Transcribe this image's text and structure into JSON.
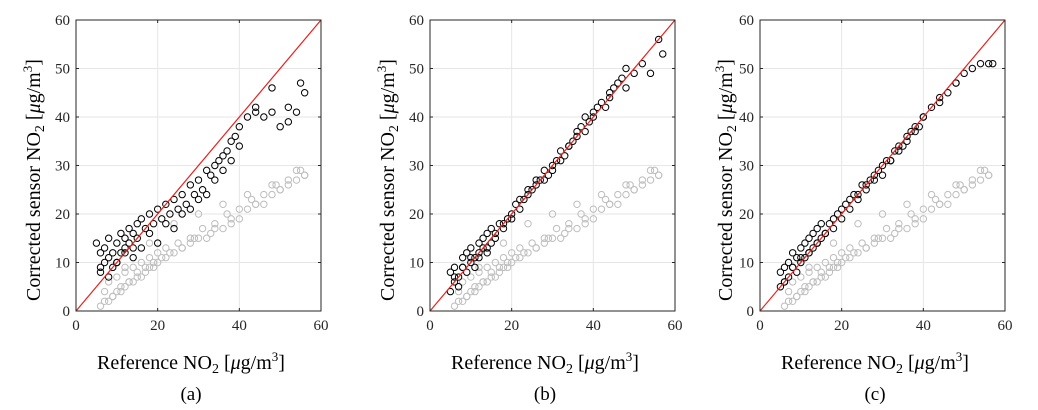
{
  "chart_data": [
    {
      "type": "scatter",
      "caption": "(a)",
      "xlabel": {
        "pre": "Reference NO",
        "sub": "2",
        "mid": " [",
        "mu": "μ",
        "unit": "g/m",
        "sup": "3",
        "post": "]"
      },
      "ylabel": {
        "pre": "Corrected sensor NO",
        "sub": "2",
        "mid": " [",
        "mu": "μ",
        "unit": "g/m",
        "sup": "3",
        "post": "]"
      },
      "xlim": [
        0,
        60
      ],
      "ylim": [
        0,
        60
      ],
      "xticks": [
        "0",
        "20",
        "40",
        "60"
      ],
      "yticks": [
        "0",
        "10",
        "20",
        "30",
        "40",
        "50",
        "60"
      ],
      "grid": true,
      "reference_line": {
        "x": [
          0,
          60
        ],
        "y": [
          0,
          60
        ],
        "color": "#e8201c"
      },
      "series": [
        {
          "role": "raw",
          "color": "#bdbdbd",
          "x": [
            6,
            7,
            8,
            9,
            10,
            11,
            12,
            13,
            14,
            15,
            16,
            17,
            18,
            19,
            20,
            22,
            24,
            26,
            28,
            30,
            32,
            34,
            36,
            38,
            40,
            42,
            44,
            46,
            48,
            50,
            52,
            54,
            56,
            8,
            10,
            12,
            14,
            16,
            18,
            20,
            22,
            25,
            28,
            31,
            34,
            37,
            40,
            43,
            46,
            49,
            52,
            55,
            9,
            11,
            13,
            15,
            17,
            19,
            21,
            23,
            26,
            29,
            33,
            38,
            44,
            50,
            56,
            7,
            12,
            18,
            24,
            30,
            36,
            42,
            48,
            54
          ],
          "y": [
            1,
            2,
            2,
            3,
            4,
            4,
            5,
            6,
            6,
            7,
            7,
            8,
            9,
            9,
            10,
            11,
            12,
            13,
            14,
            15,
            15,
            17,
            17,
            18,
            19,
            21,
            22,
            22,
            24,
            25,
            26,
            27,
            28,
            6,
            7,
            8,
            9,
            10,
            11,
            12,
            13,
            14,
            15,
            17,
            18,
            20,
            21,
            23,
            24,
            26,
            27,
            29,
            3,
            5,
            6,
            8,
            9,
            10,
            11,
            12,
            13,
            15,
            16,
            19,
            22,
            25,
            28,
            4,
            9,
            14,
            18,
            20,
            22,
            24,
            26,
            29
          ]
        },
        {
          "role": "corrected",
          "color": "#000000",
          "x": [
            5,
            6,
            6,
            7,
            7,
            8,
            8,
            9,
            9,
            10,
            10,
            11,
            11,
            12,
            12,
            13,
            13,
            14,
            14,
            15,
            15,
            16,
            17,
            18,
            19,
            20,
            21,
            22,
            23,
            24,
            25,
            26,
            27,
            28,
            29,
            30,
            31,
            32,
            33,
            34,
            35,
            36,
            37,
            38,
            39,
            40,
            42,
            44,
            46,
            48,
            50,
            52,
            54,
            56,
            6,
            8,
            10,
            12,
            14,
            16,
            18,
            20,
            22,
            24,
            26,
            28,
            30,
            32,
            34,
            36,
            38,
            40,
            44,
            48,
            52,
            55
          ],
          "y": [
            14,
            12,
            9,
            13,
            10,
            15,
            11,
            12,
            9,
            14,
            10,
            16,
            12,
            15,
            13,
            17,
            14,
            16,
            13,
            18,
            15,
            19,
            17,
            20,
            18,
            21,
            19,
            22,
            20,
            23,
            21,
            24,
            22,
            26,
            24,
            27,
            25,
            29,
            28,
            30,
            31,
            32,
            33,
            35,
            36,
            38,
            40,
            41,
            40,
            41,
            38,
            39,
            41,
            45,
            8,
            7,
            10,
            12,
            11,
            13,
            16,
            14,
            18,
            17,
            20,
            21,
            23,
            24,
            27,
            29,
            31,
            34,
            42,
            46,
            42,
            47
          ]
        }
      ]
    },
    {
      "type": "scatter",
      "caption": "(b)",
      "xlabel": {
        "pre": "Reference NO",
        "sub": "2",
        "mid": " [",
        "mu": "μ",
        "unit": "g/m",
        "sup": "3",
        "post": "]"
      },
      "ylabel": {
        "pre": "Corrected sensor NO",
        "sub": "2",
        "mid": " [",
        "mu": "μ",
        "unit": "g/m",
        "sup": "3",
        "post": "]"
      },
      "xlim": [
        0,
        60
      ],
      "ylim": [
        0,
        60
      ],
      "xticks": [
        "0",
        "20",
        "40",
        "60"
      ],
      "yticks": [
        "0",
        "10",
        "20",
        "30",
        "40",
        "50",
        "60"
      ],
      "grid": true,
      "reference_line": {
        "x": [
          0,
          60
        ],
        "y": [
          0,
          60
        ],
        "color": "#e8201c"
      },
      "series": [
        {
          "role": "raw",
          "color": "#bdbdbd",
          "x": [
            6,
            7,
            8,
            9,
            10,
            11,
            12,
            13,
            14,
            15,
            16,
            17,
            18,
            19,
            20,
            22,
            24,
            26,
            28,
            30,
            32,
            34,
            36,
            38,
            40,
            42,
            44,
            46,
            48,
            50,
            52,
            54,
            56,
            8,
            10,
            12,
            14,
            16,
            18,
            20,
            22,
            25,
            28,
            31,
            34,
            37,
            40,
            43,
            46,
            49,
            52,
            55,
            9,
            11,
            13,
            15,
            17,
            19,
            21,
            23,
            26,
            29,
            33,
            38,
            44,
            50,
            56,
            7,
            12,
            18,
            24,
            30,
            36,
            42,
            48,
            54
          ],
          "y": [
            1,
            2,
            2,
            3,
            4,
            4,
            5,
            6,
            6,
            7,
            7,
            8,
            9,
            9,
            10,
            11,
            12,
            13,
            14,
            15,
            15,
            17,
            17,
            18,
            19,
            21,
            22,
            22,
            24,
            25,
            26,
            27,
            28,
            6,
            7,
            8,
            9,
            10,
            11,
            12,
            13,
            14,
            15,
            17,
            18,
            20,
            21,
            23,
            24,
            26,
            27,
            29,
            3,
            5,
            6,
            8,
            9,
            10,
            11,
            12,
            13,
            15,
            16,
            19,
            22,
            25,
            28,
            4,
            9,
            14,
            18,
            20,
            22,
            24,
            26,
            29
          ]
        },
        {
          "role": "corrected",
          "color": "#000000",
          "x": [
            5,
            5,
            6,
            6,
            7,
            7,
            8,
            8,
            9,
            9,
            10,
            10,
            11,
            11,
            12,
            12,
            13,
            13,
            14,
            14,
            15,
            15,
            16,
            17,
            18,
            19,
            20,
            21,
            22,
            23,
            24,
            25,
            26,
            27,
            28,
            29,
            30,
            31,
            32,
            33,
            34,
            35,
            36,
            37,
            38,
            39,
            40,
            41,
            42,
            43,
            44,
            45,
            46,
            47,
            48,
            50,
            52,
            54,
            56,
            57,
            6,
            8,
            10,
            12,
            14,
            16,
            18,
            20,
            22,
            24,
            26,
            28,
            30,
            32,
            34,
            36,
            38,
            40,
            44,
            48
          ],
          "y": [
            4,
            8,
            6,
            9,
            7,
            5,
            9,
            11,
            8,
            12,
            10,
            13,
            11,
            9,
            14,
            12,
            13,
            15,
            12,
            16,
            14,
            17,
            15,
            18,
            17,
            19,
            20,
            22,
            21,
            23,
            24,
            25,
            26,
            27,
            27,
            28,
            30,
            31,
            33,
            32,
            34,
            35,
            36,
            38,
            37,
            39,
            40,
            42,
            43,
            42,
            45,
            46,
            47,
            48,
            46,
            49,
            51,
            49,
            56,
            53,
            7,
            9,
            11,
            11,
            13,
            16,
            18,
            19,
            23,
            25,
            27,
            29,
            29,
            31,
            34,
            37,
            40,
            41,
            44,
            50
          ]
        }
      ]
    },
    {
      "type": "scatter",
      "caption": "(c)",
      "xlabel": {
        "pre": "Reference NO",
        "sub": "2",
        "mid": " [",
        "mu": "μ",
        "unit": "g/m",
        "sup": "3",
        "post": "]"
      },
      "ylabel": {
        "pre": "Corrected sensor NO",
        "sub": "2",
        "mid": " [",
        "mu": "μ",
        "unit": "g/m",
        "sup": "3",
        "post": "]"
      },
      "xlim": [
        0,
        60
      ],
      "ylim": [
        0,
        60
      ],
      "xticks": [
        "0",
        "20",
        "40",
        "60"
      ],
      "yticks": [
        "0",
        "10",
        "20",
        "30",
        "40",
        "50",
        "60"
      ],
      "grid": true,
      "reference_line": {
        "x": [
          0,
          60
        ],
        "y": [
          0,
          60
        ],
        "color": "#e8201c"
      },
      "series": [
        {
          "role": "raw",
          "color": "#bdbdbd",
          "x": [
            6,
            7,
            8,
            9,
            10,
            11,
            12,
            13,
            14,
            15,
            16,
            17,
            18,
            19,
            20,
            22,
            24,
            26,
            28,
            30,
            32,
            34,
            36,
            38,
            40,
            42,
            44,
            46,
            48,
            50,
            52,
            54,
            56,
            8,
            10,
            12,
            14,
            16,
            18,
            20,
            22,
            25,
            28,
            31,
            34,
            37,
            40,
            43,
            46,
            49,
            52,
            55,
            9,
            11,
            13,
            15,
            17,
            19,
            21,
            23,
            26,
            29,
            33,
            38,
            44,
            50,
            56,
            7,
            12,
            18,
            24,
            30,
            36,
            42,
            48,
            54
          ],
          "y": [
            1,
            2,
            2,
            3,
            4,
            4,
            5,
            6,
            6,
            7,
            7,
            8,
            9,
            9,
            10,
            11,
            12,
            13,
            14,
            15,
            15,
            17,
            17,
            18,
            19,
            21,
            22,
            22,
            24,
            25,
            26,
            27,
            28,
            6,
            7,
            8,
            9,
            10,
            11,
            12,
            13,
            14,
            15,
            17,
            18,
            20,
            21,
            23,
            24,
            26,
            27,
            29,
            3,
            5,
            6,
            8,
            9,
            10,
            11,
            12,
            13,
            15,
            16,
            19,
            22,
            25,
            28,
            4,
            9,
            14,
            18,
            20,
            22,
            24,
            26,
            29
          ]
        },
        {
          "role": "corrected",
          "color": "#000000",
          "x": [
            5,
            5,
            6,
            6,
            7,
            7,
            8,
            8,
            9,
            9,
            10,
            10,
            11,
            11,
            12,
            12,
            13,
            13,
            14,
            14,
            15,
            15,
            16,
            17,
            18,
            19,
            20,
            21,
            22,
            23,
            24,
            25,
            26,
            27,
            28,
            29,
            30,
            31,
            32,
            33,
            34,
            35,
            36,
            37,
            38,
            39,
            40,
            42,
            44,
            46,
            48,
            50,
            52,
            54,
            56,
            57,
            6,
            8,
            10,
            12,
            14,
            16,
            18,
            20,
            22,
            24,
            26,
            28,
            30,
            32,
            34,
            36,
            38,
            40,
            44,
            48
          ],
          "y": [
            5,
            8,
            6,
            9,
            7,
            10,
            9,
            12,
            8,
            11,
            10,
            13,
            11,
            14,
            12,
            15,
            13,
            16,
            14,
            17,
            15,
            18,
            16,
            18,
            19,
            20,
            21,
            22,
            23,
            24,
            24,
            26,
            26,
            27,
            28,
            29,
            30,
            31,
            31,
            33,
            34,
            34,
            36,
            37,
            38,
            38,
            40,
            42,
            44,
            45,
            47,
            49,
            50,
            51,
            51,
            51,
            6,
            9,
            11,
            12,
            14,
            16,
            17,
            19,
            21,
            23,
            25,
            27,
            28,
            31,
            33,
            35,
            37,
            40,
            43,
            47
          ]
        }
      ]
    }
  ]
}
